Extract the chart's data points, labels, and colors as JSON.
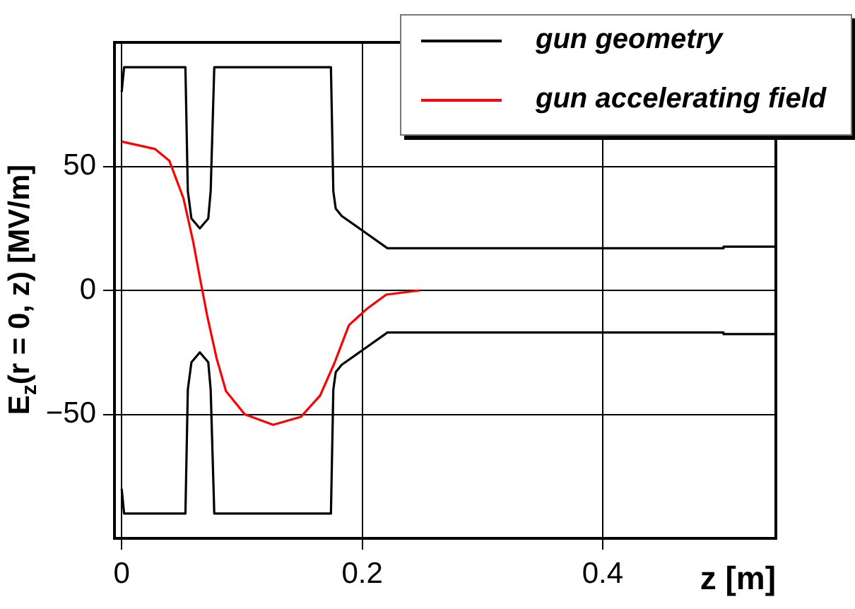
{
  "chart_data": {
    "type": "line",
    "xlabel": "z [m]",
    "ylabel": "E$_{z}$(r = 0, z) [MV/m]",
    "xlim": [
      -0.006,
      0.544
    ],
    "ylim": [
      -100,
      100
    ],
    "xticks": [
      0,
      0.2,
      0.4
    ],
    "yticks": [
      {
        "value": -50,
        "label": "−50"
      },
      0,
      50
    ],
    "grid": true,
    "legend": "top right",
    "marker": "none",
    "line_style": "solid",
    "series": [
      {
        "name": "gun geometry",
        "color": "#000000",
        "x": [
          0,
          0.002,
          0.053,
          0.055,
          0.058,
          0.065,
          0.072,
          0.074,
          0.077,
          0.174,
          0.176,
          0.178,
          0.183,
          0.221,
          0.5,
          0.5005,
          0.544,
          null,
          0,
          0.002,
          0.053,
          0.055,
          0.058,
          0.065,
          0.072,
          0.074,
          0.077,
          0.174,
          0.176,
          0.178,
          0.183,
          0.221,
          0.5,
          0.5005,
          0.544
        ],
        "values": [
          80,
          90,
          90,
          40,
          29,
          25,
          29,
          40,
          90,
          90,
          40,
          33,
          30,
          17,
          17,
          17.6,
          17.6,
          null,
          -80,
          -90,
          -90,
          -40,
          -29,
          -25,
          -29,
          -40,
          -90,
          -90,
          -40,
          -33,
          -30,
          -17,
          -17,
          -17.6,
          -17.6
        ]
      },
      {
        "name": "gun accelerating field",
        "color": "#ff0000",
        "x": [
          0,
          0.0278,
          0.0396,
          0.0514,
          0.0593,
          0.0651,
          0.0711,
          0.0789,
          0.0867,
          0.1024,
          0.126,
          0.149,
          0.165,
          0.177,
          0.189,
          0.204,
          0.22,
          0.248
        ],
        "values": [
          60,
          57,
          52.3,
          37.1,
          20,
          4.9,
          -10.2,
          -27.3,
          -40.6,
          -50,
          -54.2,
          -51,
          -42.4,
          -29.2,
          -14,
          -7.4,
          -1.7,
          0
        ]
      }
    ]
  }
}
